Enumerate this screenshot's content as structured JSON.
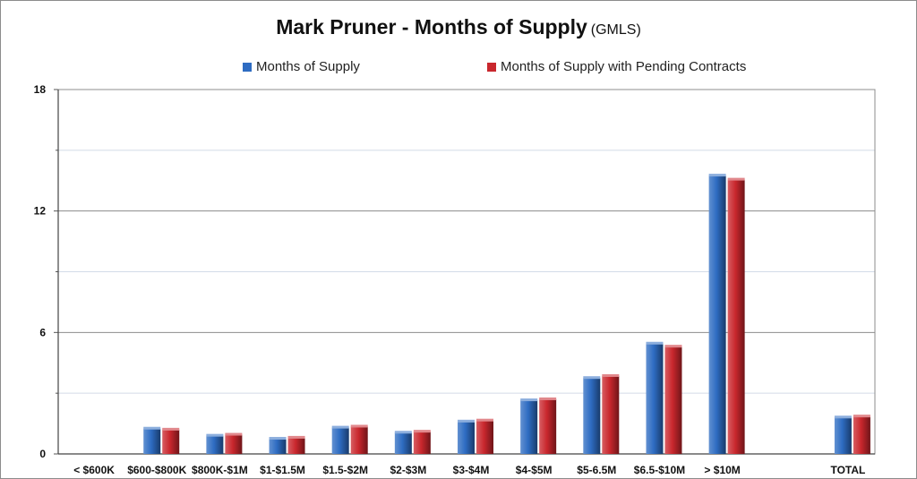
{
  "chart_data": {
    "type": "bar",
    "title": "Mark Pruner - Months of Supply",
    "subtitle": "(GMLS)",
    "categories": [
      "< $600K",
      "$600-$800K",
      "$800K-$1M",
      "$1-$1.5M",
      "$1.5-$2M",
      "$2-$3M",
      "$3-$4M",
      "$4-$5M",
      "$5-6.5M",
      "$6.5-$10M",
      "> $10M",
      "",
      "TOTAL"
    ],
    "series": [
      {
        "name": "Months of Supply",
        "color": "#2e6cc2",
        "values": [
          0,
          1.25,
          0.9,
          0.75,
          1.3,
          1.05,
          1.6,
          2.65,
          3.75,
          5.45,
          13.75,
          null,
          1.8
        ]
      },
      {
        "name": "Months of Supply with Pending Contracts",
        "color": "#c9272d",
        "values": [
          0,
          1.2,
          0.95,
          0.8,
          1.35,
          1.1,
          1.65,
          2.7,
          3.85,
          5.3,
          13.55,
          null,
          1.85
        ]
      }
    ],
    "ylim": [
      0,
      18
    ],
    "yticks": [
      0,
      6,
      12,
      18
    ],
    "xlabel": "",
    "ylabel": "",
    "legend_position": "top",
    "grid": true
  }
}
